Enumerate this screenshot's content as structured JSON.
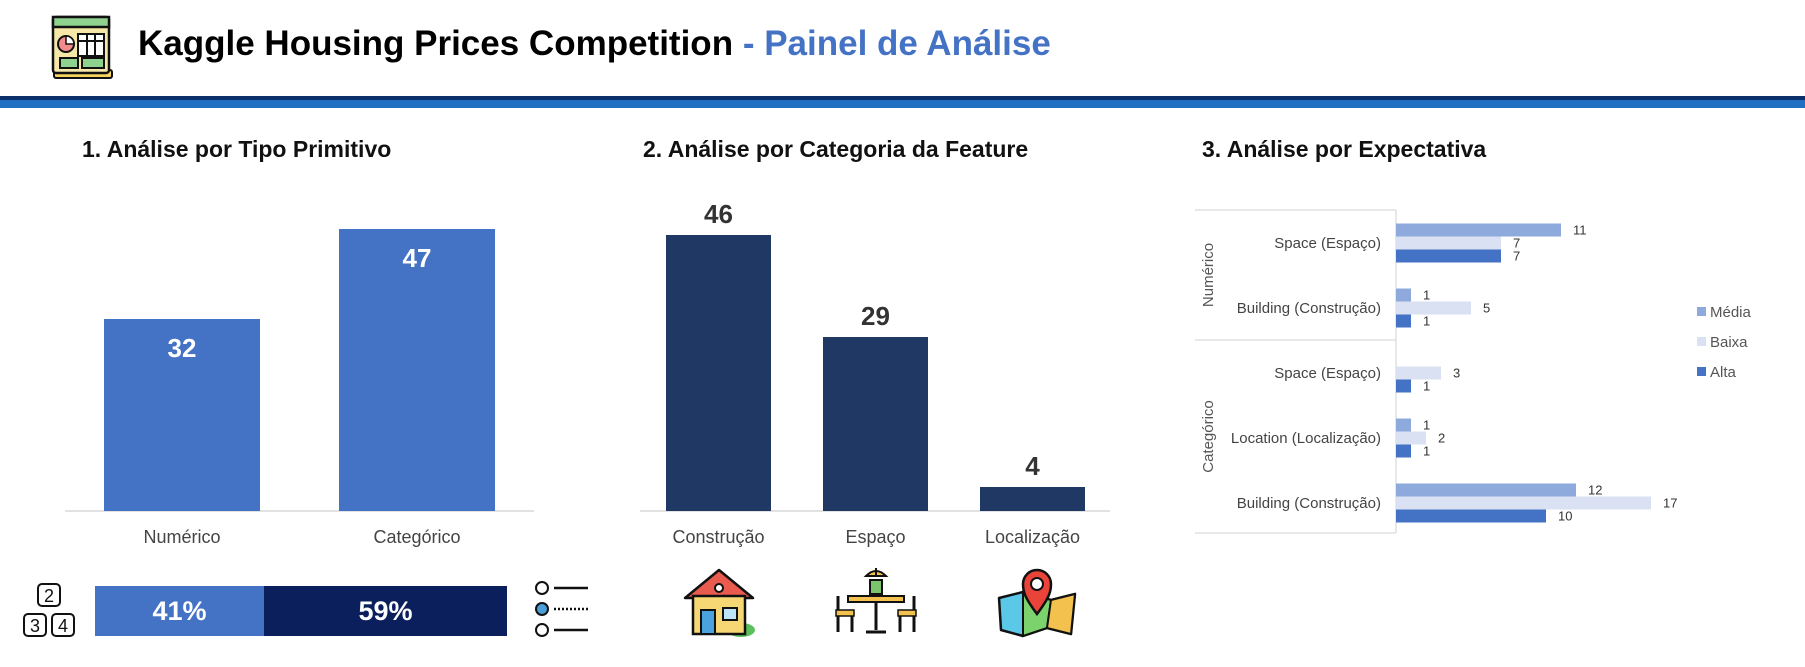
{
  "header": {
    "title_main": "Kaggle Housing Prices Competition",
    "title_accent": "- Painel de Análise",
    "logo_icon": "dashboard-document-icon"
  },
  "colors": {
    "accent": "#4472C4",
    "dark_navy": "#203864",
    "darker_navy": "#0B1F5C",
    "header_rule": "#1F6FC2",
    "media": "#8EA9DB",
    "baixa": "#D9E1F2",
    "alta": "#4472C4"
  },
  "sections": {
    "s1_title": "1. Análise por Tipo Primitivo",
    "s2_title": "2. Análise por Categoria da Feature",
    "s3_title": "3. Análise por Expectativa"
  },
  "chart_data": [
    {
      "type": "bar",
      "categories": [
        "Numérico",
        "Categórico"
      ],
      "values": [
        32,
        47
      ],
      "ylim": [
        0,
        50
      ]
    },
    {
      "type": "bar",
      "categories": [
        "Construção",
        "Espaço",
        "Localização"
      ],
      "values": [
        46,
        29,
        4
      ],
      "ylim": [
        0,
        50
      ],
      "icons": [
        "house-icon",
        "dining-table-icon",
        "map-pin-icon"
      ]
    },
    {
      "type": "bar",
      "orientation": "horizontal",
      "groups": [
        {
          "name": "Numérico",
          "categories": [
            "Space (Espaço)",
            "Building (Construção)"
          ]
        },
        {
          "name": "Categórico",
          "categories": [
            "Space (Espaço)",
            "Location (Localização)",
            "Building (Construção)"
          ]
        }
      ],
      "categories": [
        "Space (Espaço)",
        "Building (Construção)",
        "Space (Espaço)",
        "Location (Localização)",
        "Building (Construção)"
      ],
      "series": [
        {
          "name": "Média",
          "values": [
            11,
            1,
            null,
            1,
            12
          ]
        },
        {
          "name": "Baixa",
          "values": [
            7,
            5,
            3,
            2,
            17
          ]
        },
        {
          "name": "Alta",
          "values": [
            7,
            1,
            1,
            1,
            10
          ]
        }
      ],
      "xlim": [
        0,
        20
      ],
      "legend": "right"
    },
    {
      "type": "bar",
      "orientation": "stacked-horizontal",
      "categories": [
        "Numérico",
        "Categórico"
      ],
      "values": [
        41,
        59
      ],
      "labels": [
        "41%",
        "59%"
      ],
      "icons": [
        "numbers-grid-icon",
        "list-options-icon"
      ]
    }
  ]
}
